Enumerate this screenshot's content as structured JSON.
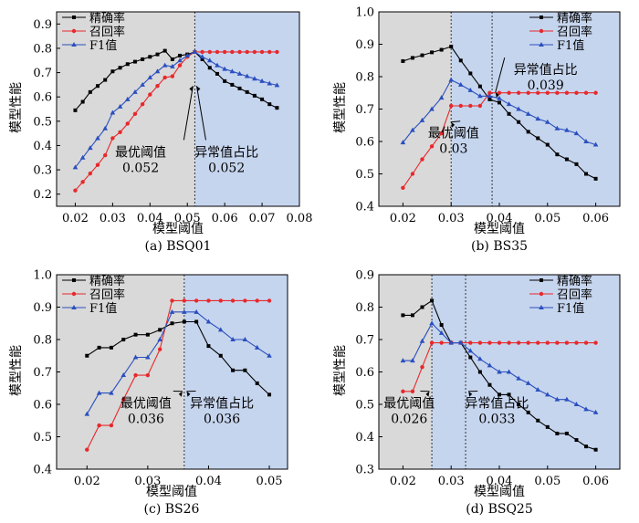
{
  "chart_data": [
    {
      "type": "line",
      "caption": "(a) BSQ01",
      "xlabel": "模型阈值",
      "ylabel": "模型性能",
      "xlim": [
        0.015,
        0.08
      ],
      "ylim": [
        0.15,
        0.95
      ],
      "xticks": [
        "0.02",
        "0.03",
        "0.04",
        "0.05",
        "0.06",
        "0.07",
        "0.08"
      ],
      "yticks": [
        "0.2",
        "0.3",
        "0.4",
        "0.5",
        "0.6",
        "0.7",
        "0.8",
        "0.9"
      ],
      "grey_region": [
        0.015,
        0.052
      ],
      "blue_region": [
        0.052,
        0.08
      ],
      "x": [
        0.02,
        0.022,
        0.024,
        0.026,
        0.028,
        0.03,
        0.032,
        0.034,
        0.036,
        0.038,
        0.04,
        0.042,
        0.044,
        0.046,
        0.048,
        0.05,
        0.052,
        0.054,
        0.056,
        0.058,
        0.06,
        0.062,
        0.064,
        0.066,
        0.068,
        0.07,
        0.072,
        0.074
      ],
      "series": [
        {
          "name": "精确率",
          "color": "#000000",
          "marker": "square",
          "values": [
            0.545,
            0.58,
            0.62,
            0.645,
            0.67,
            0.705,
            0.72,
            0.735,
            0.745,
            0.755,
            0.765,
            0.775,
            0.79,
            0.755,
            0.77,
            0.775,
            0.785,
            0.755,
            0.72,
            0.695,
            0.665,
            0.65,
            0.635,
            0.62,
            0.605,
            0.59,
            0.57,
            0.555
          ]
        },
        {
          "name": "召回率",
          "color": "#e8282b",
          "marker": "circle",
          "values": [
            0.215,
            0.25,
            0.285,
            0.32,
            0.36,
            0.43,
            0.455,
            0.49,
            0.53,
            0.57,
            0.61,
            0.645,
            0.68,
            0.685,
            0.73,
            0.765,
            0.785,
            0.785,
            0.785,
            0.785,
            0.785,
            0.785,
            0.785,
            0.785,
            0.785,
            0.785,
            0.785,
            0.785
          ]
        },
        {
          "name": "F1值",
          "color": "#2a4fbf",
          "marker": "triangle",
          "values": [
            0.31,
            0.35,
            0.39,
            0.43,
            0.47,
            0.535,
            0.56,
            0.59,
            0.62,
            0.65,
            0.68,
            0.705,
            0.73,
            0.725,
            0.75,
            0.77,
            0.785,
            0.765,
            0.75,
            0.73,
            0.715,
            0.705,
            0.695,
            0.685,
            0.675,
            0.665,
            0.655,
            0.648
          ]
        }
      ],
      "vline": 0.052,
      "annotations": [
        {
          "line1": "最优阈值",
          "line2": "0.052",
          "tx": 0.0375,
          "ty": 0.355,
          "ax": 0.0515,
          "ay": 0.645
        },
        {
          "line1": "异常值占比",
          "line2": "0.052",
          "tx": 0.0605,
          "ty": 0.355,
          "ax": 0.0525,
          "ay": 0.645
        }
      ]
    },
    {
      "type": "line",
      "caption": "(b) BS35",
      "xlabel": "模型阈值",
      "ylabel": "模型性能",
      "xlim": [
        0.015,
        0.065
      ],
      "ylim": [
        0.4,
        1.0
      ],
      "xticks": [
        "0.02",
        "0.03",
        "0.04",
        "0.05",
        "0.06"
      ],
      "yticks": [
        "0.4",
        "0.5",
        "0.6",
        "0.7",
        "0.8",
        "0.9",
        "1.0"
      ],
      "grey_region": [
        0.015,
        0.03
      ],
      "blue_region": [
        0.03,
        0.065
      ],
      "x": [
        0.02,
        0.022,
        0.024,
        0.026,
        0.028,
        0.03,
        0.032,
        0.034,
        0.036,
        0.038,
        0.04,
        0.042,
        0.044,
        0.046,
        0.048,
        0.05,
        0.052,
        0.054,
        0.056,
        0.058,
        0.06
      ],
      "series": [
        {
          "name": "精确率",
          "color": "#000000",
          "marker": "square",
          "values": [
            0.848,
            0.858,
            0.866,
            0.875,
            0.883,
            0.893,
            0.85,
            0.81,
            0.77,
            0.73,
            0.72,
            0.685,
            0.66,
            0.63,
            0.61,
            0.59,
            0.56,
            0.545,
            0.53,
            0.5,
            0.485
          ]
        },
        {
          "name": "召回率",
          "color": "#e8282b",
          "marker": "circle",
          "values": [
            0.457,
            0.5,
            0.545,
            0.585,
            0.625,
            0.71,
            0.71,
            0.71,
            0.71,
            0.75,
            0.75,
            0.75,
            0.75,
            0.75,
            0.75,
            0.75,
            0.75,
            0.75,
            0.75,
            0.75,
            0.75
          ]
        },
        {
          "name": "F1值",
          "color": "#2a4fbf",
          "marker": "triangle",
          "values": [
            0.597,
            0.635,
            0.665,
            0.7,
            0.735,
            0.79,
            0.775,
            0.758,
            0.74,
            0.74,
            0.733,
            0.715,
            0.7,
            0.685,
            0.67,
            0.66,
            0.64,
            0.635,
            0.625,
            0.6,
            0.59
          ]
        }
      ],
      "vlines": [
        0.03,
        0.0385
      ],
      "annotations": [
        {
          "line1": "最优阈值",
          "line2": "0.03",
          "tx": 0.0305,
          "ty": 0.612,
          "ax": 0.03,
          "ay": 0.66
        },
        {
          "line1": "异常值占比",
          "line2": "0.039",
          "tx": 0.0496,
          "ty": 0.808,
          "ax": 0.0392,
          "ay": 0.752
        }
      ]
    },
    {
      "type": "line",
      "caption": "(c) BS26",
      "xlabel": "模型阈值",
      "ylabel": "模型性能",
      "xlim": [
        0.015,
        0.053
      ],
      "ylim": [
        0.4,
        1.0
      ],
      "xticks": [
        "0.02",
        "0.03",
        "0.04",
        "0.05"
      ],
      "yticks": [
        "0.4",
        "0.5",
        "0.6",
        "0.7",
        "0.8",
        "0.9",
        "1.0"
      ],
      "grey_region": [
        0.015,
        0.036
      ],
      "blue_region": [
        0.036,
        0.053
      ],
      "x": [
        0.02,
        0.022,
        0.024,
        0.026,
        0.028,
        0.03,
        0.032,
        0.034,
        0.036,
        0.038,
        0.04,
        0.042,
        0.044,
        0.046,
        0.048,
        0.05
      ],
      "series": [
        {
          "name": "精确率",
          "color": "#000000",
          "marker": "square",
          "values": [
            0.75,
            0.775,
            0.775,
            0.8,
            0.815,
            0.815,
            0.83,
            0.85,
            0.855,
            0.855,
            0.78,
            0.75,
            0.705,
            0.705,
            0.665,
            0.63
          ]
        },
        {
          "name": "召回率",
          "color": "#e8282b",
          "marker": "circle",
          "values": [
            0.46,
            0.535,
            0.535,
            0.615,
            0.69,
            0.69,
            0.77,
            0.92,
            0.92,
            0.92,
            0.92,
            0.92,
            0.92,
            0.92,
            0.92,
            0.92
          ]
        },
        {
          "name": "F1值",
          "color": "#2a4fbf",
          "marker": "triangle",
          "values": [
            0.57,
            0.635,
            0.635,
            0.69,
            0.745,
            0.745,
            0.8,
            0.885,
            0.885,
            0.885,
            0.855,
            0.83,
            0.8,
            0.8,
            0.775,
            0.75
          ]
        }
      ],
      "vline": 0.036,
      "annotations": [
        {
          "line1": "最优阈值",
          "line2": "0.036",
          "tx": 0.0297,
          "ty": 0.59,
          "ax": 0.0357,
          "ay": 0.64
        },
        {
          "line1": "异常值占比",
          "line2": "0.036",
          "tx": 0.0422,
          "ty": 0.59,
          "ax": 0.0364,
          "ay": 0.64
        }
      ]
    },
    {
      "type": "line",
      "caption": "(d) BSQ25",
      "xlabel": "模型阈值",
      "ylabel": "模型性能",
      "xlim": [
        0.015,
        0.065
      ],
      "ylim": [
        0.3,
        0.9
      ],
      "xticks": [
        "0.02",
        "0.03",
        "0.04",
        "0.05",
        "0.06"
      ],
      "yticks": [
        "0.3",
        "0.4",
        "0.5",
        "0.6",
        "0.7",
        "0.8",
        "0.9"
      ],
      "grey_region": [
        0.015,
        0.026
      ],
      "blue_region": [
        0.026,
        0.065
      ],
      "x": [
        0.02,
        0.022,
        0.024,
        0.026,
        0.028,
        0.03,
        0.032,
        0.034,
        0.036,
        0.038,
        0.04,
        0.042,
        0.044,
        0.046,
        0.048,
        0.05,
        0.052,
        0.054,
        0.056,
        0.058,
        0.06
      ],
      "series": [
        {
          "name": "精确率",
          "color": "#000000",
          "marker": "square",
          "values": [
            0.775,
            0.775,
            0.8,
            0.82,
            0.745,
            0.69,
            0.69,
            0.645,
            0.6,
            0.56,
            0.53,
            0.53,
            0.5,
            0.475,
            0.45,
            0.43,
            0.41,
            0.41,
            0.39,
            0.37,
            0.36
          ]
        },
        {
          "name": "召回率",
          "color": "#e8282b",
          "marker": "circle",
          "values": [
            0.54,
            0.54,
            0.615,
            0.69,
            0.69,
            0.69,
            0.69,
            0.69,
            0.69,
            0.69,
            0.69,
            0.69,
            0.69,
            0.69,
            0.69,
            0.69,
            0.69,
            0.69,
            0.69,
            0.69,
            0.69
          ]
        },
        {
          "name": "F1值",
          "color": "#2a4fbf",
          "marker": "triangle",
          "values": [
            0.635,
            0.635,
            0.695,
            0.75,
            0.72,
            0.69,
            0.69,
            0.665,
            0.64,
            0.62,
            0.6,
            0.6,
            0.58,
            0.565,
            0.545,
            0.53,
            0.515,
            0.515,
            0.5,
            0.485,
            0.475
          ]
        }
      ],
      "vlines": [
        0.026,
        0.033
      ],
      "annotations": [
        {
          "line1": "最优阈值",
          "line2": "0.026",
          "tx": 0.0213,
          "ty": 0.49,
          "ax": 0.0255,
          "ay": 0.54
        },
        {
          "line1": "异常值占比",
          "line2": "0.033",
          "tx": 0.0395,
          "ty": 0.49,
          "ax": 0.0336,
          "ay": 0.54
        }
      ]
    }
  ]
}
